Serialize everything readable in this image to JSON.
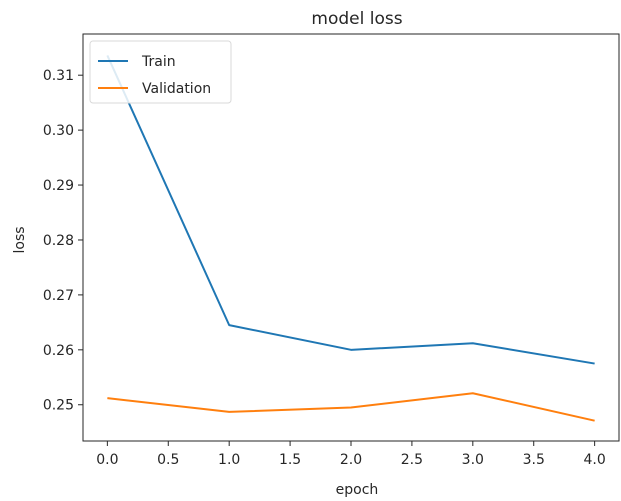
{
  "chart_data": {
    "type": "line",
    "title": "model loss",
    "xlabel": "epoch",
    "ylabel": "loss",
    "x": [
      0,
      1,
      2,
      3,
      4
    ],
    "xlim": [
      -0.2,
      4.2
    ],
    "ylim": [
      0.2434,
      0.3175
    ],
    "xticks": [
      0.0,
      0.5,
      1.0,
      1.5,
      2.0,
      2.5,
      3.0,
      3.5,
      4.0
    ],
    "xtick_labels": [
      "0.0",
      "0.5",
      "1.0",
      "1.5",
      "2.0",
      "2.5",
      "3.0",
      "3.5",
      "4.0"
    ],
    "yticks": [
      0.25,
      0.26,
      0.27,
      0.28,
      0.29,
      0.3,
      0.31
    ],
    "ytick_labels": [
      "0.25",
      "0.26",
      "0.27",
      "0.28",
      "0.29",
      "0.30",
      "0.31"
    ],
    "grid": false,
    "legend_position": "top-left",
    "series": [
      {
        "name": "Train",
        "color": "#1f77b4",
        "values": [
          0.3136,
          0.2645,
          0.26,
          0.2612,
          0.2575
        ]
      },
      {
        "name": "Validation",
        "color": "#ff7f0e",
        "values": [
          0.2512,
          0.2487,
          0.2495,
          0.2521,
          0.2471
        ]
      }
    ]
  }
}
